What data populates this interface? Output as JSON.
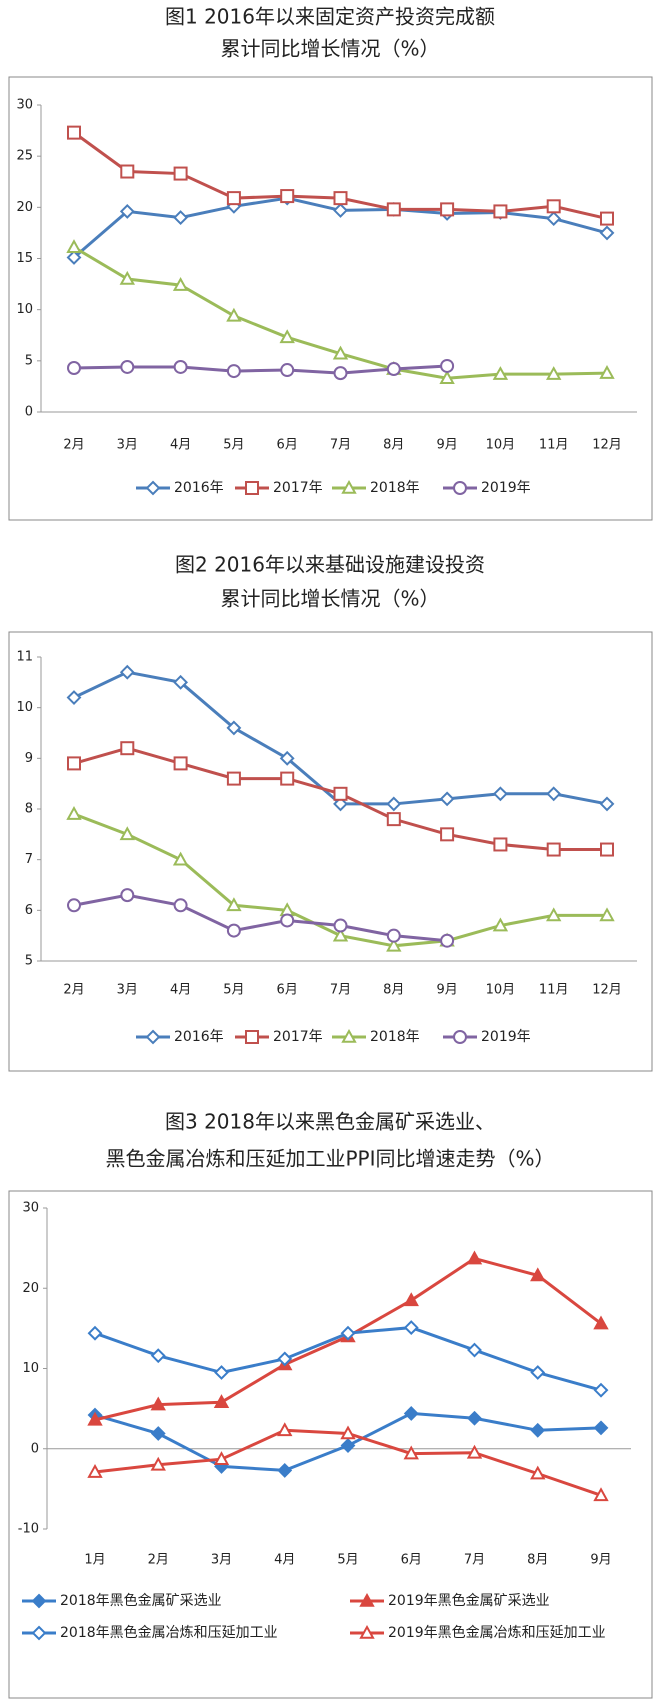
{
  "chart_data": [
    {
      "type": "line",
      "title": [
        "图1 2016年以来固定资产投资完成额",
        "累计同比增长情况（%）"
      ],
      "categories": [
        "2月",
        "3月",
        "4月",
        "5月",
        "6月",
        "7月",
        "8月",
        "9月",
        "10月",
        "11月",
        "12月"
      ],
      "ylim": [
        0,
        30
      ],
      "yticks": [
        0,
        5,
        10,
        15,
        20,
        25,
        30
      ],
      "series": [
        {
          "name": "2016年",
          "color": "#4a7ebb",
          "marker": "diamond",
          "filled": false,
          "values": [
            15.1,
            19.6,
            19.0,
            20.1,
            20.9,
            19.7,
            19.8,
            19.4,
            19.5,
            18.9,
            17.5
          ]
        },
        {
          "name": "2017年",
          "color": "#c0504d",
          "marker": "square",
          "filled": false,
          "values": [
            27.3,
            23.5,
            23.3,
            20.9,
            21.1,
            20.9,
            19.8,
            19.8,
            19.6,
            20.1,
            18.9
          ]
        },
        {
          "name": "2018年",
          "color": "#9bbb59",
          "marker": "triangle",
          "filled": false,
          "values": [
            16.1,
            13.0,
            12.4,
            9.4,
            7.3,
            5.7,
            4.2,
            3.3,
            3.7,
            3.7,
            3.8
          ]
        },
        {
          "name": "2019年",
          "color": "#8064a2",
          "marker": "circle",
          "filled": false,
          "values": [
            4.3,
            4.4,
            4.4,
            4.0,
            4.1,
            3.8,
            4.2,
            4.5,
            null,
            null,
            null
          ]
        }
      ]
    },
    {
      "type": "line",
      "title": [
        "图2 2016年以来基础设施建设投资",
        "累计同比增长情况（%）"
      ],
      "categories": [
        "2月",
        "3月",
        "4月",
        "5月",
        "6月",
        "7月",
        "8月",
        "9月",
        "10月",
        "11月",
        "12月"
      ],
      "ylim": [
        5,
        11
      ],
      "yticks": [
        5,
        6,
        7,
        8,
        9,
        10,
        11
      ],
      "series": [
        {
          "name": "2016年",
          "color": "#4a7ebb",
          "marker": "diamond",
          "filled": false,
          "values": [
            10.2,
            10.7,
            10.5,
            9.6,
            9.0,
            8.1,
            8.1,
            8.2,
            8.3,
            8.3,
            8.1
          ]
        },
        {
          "name": "2017年",
          "color": "#c0504d",
          "marker": "square",
          "filled": false,
          "values": [
            8.9,
            9.2,
            8.9,
            8.6,
            8.6,
            8.3,
            7.8,
            7.5,
            7.3,
            7.2,
            7.2
          ]
        },
        {
          "name": "2018年",
          "color": "#9bbb59",
          "marker": "triangle",
          "filled": false,
          "values": [
            7.9,
            7.5,
            7.0,
            6.1,
            6.0,
            5.5,
            5.3,
            5.4,
            5.7,
            5.9,
            5.9
          ]
        },
        {
          "name": "2019年",
          "color": "#8064a2",
          "marker": "circle",
          "filled": false,
          "values": [
            6.1,
            6.3,
            6.1,
            5.6,
            5.8,
            5.7,
            5.5,
            5.4,
            null,
            null,
            null
          ]
        }
      ]
    },
    {
      "type": "line",
      "title": [
        "图3 2018年以来黑色金属矿采选业、",
        "黑色金属冶炼和压延加工业PPI同比增速走势（%）"
      ],
      "categories": [
        "1月",
        "2月",
        "3月",
        "4月",
        "5月",
        "6月",
        "7月",
        "8月",
        "9月"
      ],
      "ylim": [
        -10,
        30
      ],
      "yticks": [
        -10,
        0,
        10,
        20,
        30
      ],
      "series": [
        {
          "name": "2018年黑色金属矿采选业",
          "color": "#3a7dc9",
          "marker": "diamond",
          "filled": true,
          "values": [
            4.2,
            1.9,
            -2.2,
            -2.7,
            0.4,
            4.4,
            3.8,
            2.3,
            2.6
          ]
        },
        {
          "name": "2019年黑色金属矿采选业",
          "color": "#d9473f",
          "marker": "triangle",
          "filled": true,
          "values": [
            3.6,
            5.5,
            5.8,
            10.5,
            14.0,
            18.5,
            23.7,
            21.6,
            15.6
          ]
        },
        {
          "name": "2018年黑色金属冶炼和压延加工业",
          "color": "#3a7dc9",
          "marker": "diamond",
          "filled": false,
          "values": [
            14.4,
            11.6,
            9.5,
            11.2,
            14.4,
            15.1,
            12.3,
            9.5,
            7.3
          ]
        },
        {
          "name": "2019年黑色金属冶炼和压延加工业",
          "color": "#d9473f",
          "marker": "triangle",
          "filled": false,
          "values": [
            -2.9,
            -2.0,
            -1.3,
            2.3,
            1.9,
            -0.6,
            -0.5,
            -3.1,
            -5.8
          ]
        }
      ]
    }
  ]
}
